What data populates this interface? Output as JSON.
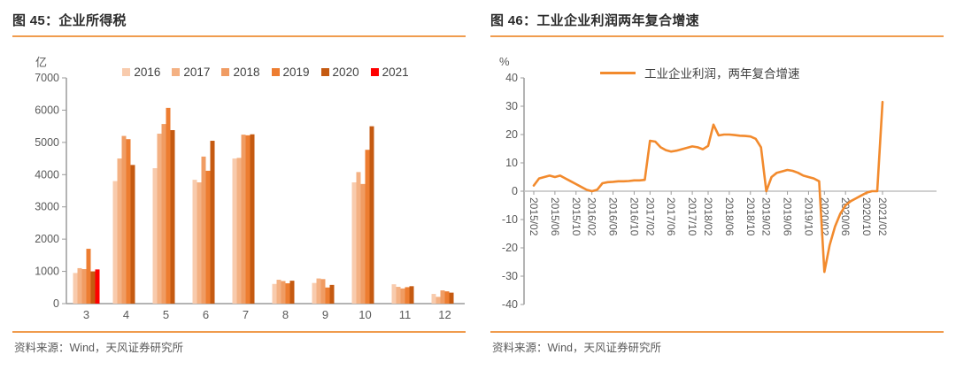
{
  "colors": {
    "accent_orange": "#f09c4e",
    "line_orange": "#f28a2d",
    "axis_gray": "#9b9b9b",
    "zero_line_gray": "#c0c0c0",
    "tick_text_gray": "#595959",
    "title_text": "#2b2b2b"
  },
  "left_panel": {
    "title": "图 45：企业所得税",
    "unit_label": "亿",
    "source": "资料来源：Wind，天风证券研究所",
    "chart_data": {
      "type": "bar",
      "title": "企业所得税",
      "ylabel": "亿",
      "ylim": [
        0,
        7000
      ],
      "yticks": [
        0,
        1000,
        2000,
        3000,
        4000,
        5000,
        6000,
        7000
      ],
      "grid": false,
      "legend_position": "top",
      "categories": [
        "3",
        "4",
        "5",
        "6",
        "7",
        "8",
        "9",
        "10",
        "11",
        "12"
      ],
      "series": [
        {
          "name": "2016",
          "color": "#f8cbad",
          "values": [
            950,
            3800,
            4200,
            3840,
            4500,
            610,
            640,
            3760,
            600,
            300
          ]
        },
        {
          "name": "2017",
          "color": "#f4b183",
          "values": [
            1100,
            4500,
            5270,
            3760,
            4520,
            740,
            780,
            4080,
            520,
            210
          ]
        },
        {
          "name": "2018",
          "color": "#f09c63",
          "values": [
            1070,
            5200,
            5570,
            4560,
            5240,
            700,
            760,
            3710,
            470,
            410
          ]
        },
        {
          "name": "2019",
          "color": "#ed7d31",
          "values": [
            1700,
            5100,
            6070,
            4120,
            5220,
            630,
            500,
            4770,
            510,
            380
          ]
        },
        {
          "name": "2020",
          "color": "#c55a11",
          "values": [
            1000,
            4300,
            5380,
            5050,
            5250,
            710,
            580,
            5500,
            540,
            340
          ]
        },
        {
          "name": "2021",
          "color": "#ff0000",
          "values": [
            1060,
            null,
            null,
            null,
            null,
            null,
            null,
            null,
            null,
            null
          ]
        }
      ]
    }
  },
  "right_panel": {
    "title": "图 46：工业企业利润两年复合增速",
    "unit_label": "%",
    "legend_label": "工业企业利润，两年复合增速",
    "source": "资料来源：Wind，天风证券研究所",
    "chart_data": {
      "type": "line",
      "series_name": "工业企业利润，两年复合增速",
      "color": "#f28a2d",
      "ylim": [
        -40,
        40
      ],
      "yticks": [
        40,
        30,
        20,
        10,
        0,
        -10,
        -20,
        -30,
        -40
      ],
      "grid": false,
      "legend_position": "top",
      "xticks": [
        "2015/02",
        "2015/06",
        "2015/10",
        "2016/02",
        "2016/06",
        "2016/10",
        "2017/02",
        "2017/06",
        "2017/10",
        "2018/02",
        "2018/06",
        "2018/10",
        "2019/02",
        "2019/06",
        "2019/10",
        "2020/02",
        "2020/06",
        "2020/10",
        "2021/02"
      ],
      "x": [
        "2015/02",
        "2015/03",
        "2015/04",
        "2015/05",
        "2015/06",
        "2015/07",
        "2015/08",
        "2015/09",
        "2015/10",
        "2015/11",
        "2015/12",
        "2016/02",
        "2016/03",
        "2016/04",
        "2016/05",
        "2016/06",
        "2016/07",
        "2016/08",
        "2016/09",
        "2016/10",
        "2016/11",
        "2016/12",
        "2017/02",
        "2017/03",
        "2017/04",
        "2017/05",
        "2017/06",
        "2017/07",
        "2017/08",
        "2017/09",
        "2017/10",
        "2017/11",
        "2017/12",
        "2018/02",
        "2018/03",
        "2018/04",
        "2018/05",
        "2018/06",
        "2018/07",
        "2018/08",
        "2018/09",
        "2018/10",
        "2018/11",
        "2018/12",
        "2019/02",
        "2019/03",
        "2019/04",
        "2019/05",
        "2019/06",
        "2019/07",
        "2019/08",
        "2019/09",
        "2019/10",
        "2019/11",
        "2019/12",
        "2020/02",
        "2020/03",
        "2020/04",
        "2020/05",
        "2020/06",
        "2020/07",
        "2020/08",
        "2020/09",
        "2020/10",
        "2020/11",
        "2020/12",
        "2021/02"
      ],
      "values": [
        2,
        4.5,
        5,
        5.5,
        5,
        5.5,
        4.5,
        3.5,
        2.5,
        1.5,
        0.5,
        0,
        0.5,
        2.8,
        3.2,
        3.3,
        3.5,
        3.5,
        3.6,
        3.8,
        3.8,
        4,
        17.8,
        17.5,
        15.5,
        14.5,
        14,
        14.3,
        14.8,
        15.3,
        15.8,
        15.5,
        14.8,
        16,
        23.5,
        19.7,
        20,
        20,
        19.8,
        19.6,
        19.5,
        19.3,
        18.5,
        15.5,
        0,
        5,
        6.5,
        7,
        7.5,
        7.2,
        6.5,
        5.5,
        5,
        4.5,
        3.5,
        -28.5,
        -19,
        -12.5,
        -8,
        -5,
        -3.5,
        -2.5,
        -1.5,
        -0.5,
        0,
        0,
        31.5
      ]
    }
  }
}
